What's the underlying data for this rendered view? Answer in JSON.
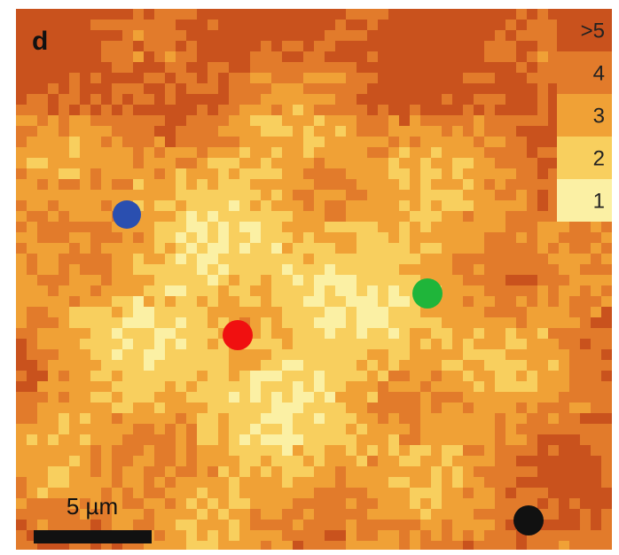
{
  "panel_label": "d",
  "legend": {
    "items": [
      {
        "label": ">5",
        "color": "#c9521d"
      },
      {
        "label": "4",
        "color": "#e27b2b"
      },
      {
        "label": "3",
        "color": "#f0a136"
      },
      {
        "label": "2",
        "color": "#f8cf5e"
      },
      {
        "label": "1",
        "color": "#fbf0a4"
      }
    ]
  },
  "scale_bar": {
    "label": "5 µm"
  }
}
